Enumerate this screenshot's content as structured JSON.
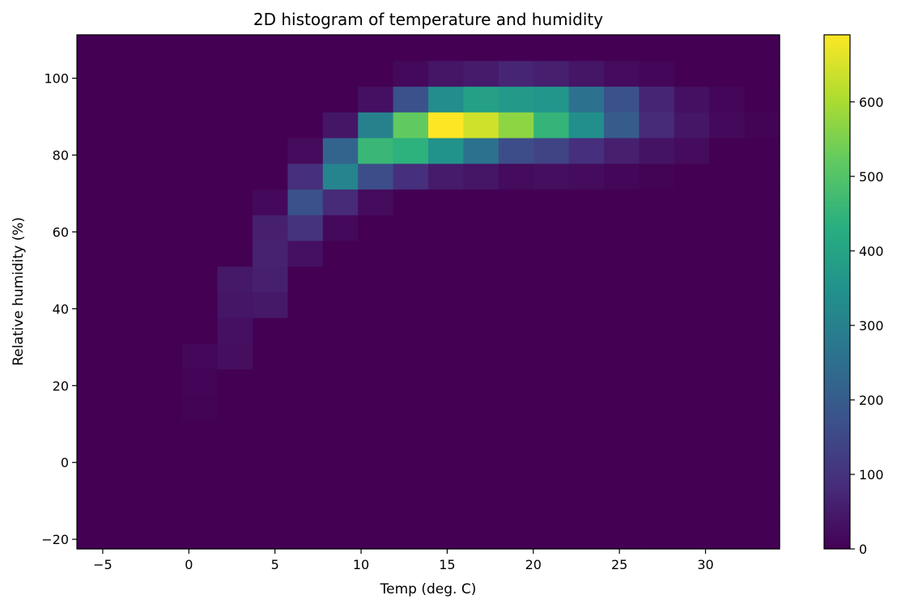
{
  "chart_data": {
    "type": "heatmap",
    "title": "2D histogram of temperature and humidity",
    "xlabel": "Temp (deg. C)",
    "ylabel": "Relative humidity (%)",
    "xlim": [
      -6.5,
      34.3
    ],
    "ylim": [
      -22.5,
      111.3
    ],
    "xticks": [
      -5,
      0,
      5,
      10,
      15,
      20,
      25,
      30
    ],
    "xtick_labels": [
      "−5",
      "0",
      "5",
      "10",
      "15",
      "20",
      "25",
      "30"
    ],
    "yticks": [
      -20,
      0,
      20,
      40,
      60,
      80,
      100
    ],
    "ytick_labels": [
      "−20",
      "0",
      "20",
      "40",
      "60",
      "80",
      "100"
    ],
    "colormap": "viridis",
    "colorbar": {
      "range": [
        0,
        690
      ],
      "ticks": [
        0,
        100,
        200,
        300,
        400,
        500,
        600
      ],
      "tick_labels": [
        "0",
        "100",
        "200",
        "300",
        "400",
        "500",
        "600"
      ]
    },
    "x_edges": [
      -6.5,
      -4.46,
      -2.42,
      -0.38,
      1.66,
      3.7,
      5.74,
      7.78,
      9.82,
      11.86,
      13.9,
      15.94,
      17.98,
      20.02,
      22.06,
      24.1,
      26.14,
      28.18,
      30.22,
      32.26,
      34.3
    ],
    "y_edges": [
      -22.5,
      -15.81,
      -9.12,
      -2.43,
      4.26,
      10.95,
      17.64,
      24.33,
      31.02,
      37.71,
      44.4,
      51.09,
      57.78,
      64.47,
      71.16,
      77.85,
      84.54,
      91.23,
      97.92,
      104.61,
      111.3
    ],
    "counts": [
      [
        0,
        0,
        0,
        0,
        0,
        0,
        0,
        0,
        0,
        0,
        0,
        0,
        0,
        0,
        0,
        0,
        0,
        0,
        0,
        0
      ],
      [
        0,
        0,
        0,
        0,
        0,
        0,
        0,
        0,
        0,
        0,
        0,
        0,
        0,
        0,
        0,
        0,
        0,
        0,
        0,
        0
      ],
      [
        0,
        0,
        0,
        0,
        0,
        0,
        0,
        0,
        0,
        0,
        0,
        0,
        0,
        0,
        0,
        0,
        0,
        0,
        0,
        0
      ],
      [
        0,
        0,
        0,
        0,
        0,
        0,
        0,
        0,
        0,
        0,
        0,
        0,
        0,
        0,
        0,
        0,
        0,
        0,
        0,
        0
      ],
      [
        0,
        0,
        0,
        0,
        0,
        0,
        0,
        0,
        0,
        0,
        0,
        0,
        0,
        0,
        0,
        0,
        0,
        0,
        0,
        0
      ],
      [
        0,
        0,
        0,
        5,
        0,
        0,
        0,
        0,
        0,
        0,
        0,
        0,
        0,
        0,
        0,
        0,
        0,
        0,
        0,
        0
      ],
      [
        0,
        0,
        0,
        8,
        0,
        0,
        0,
        0,
        0,
        0,
        0,
        0,
        0,
        0,
        0,
        0,
        0,
        0,
        0,
        0
      ],
      [
        0,
        0,
        0,
        12,
        25,
        0,
        0,
        0,
        0,
        0,
        0,
        0,
        0,
        0,
        0,
        0,
        0,
        0,
        0,
        0
      ],
      [
        0,
        0,
        0,
        0,
        30,
        0,
        0,
        0,
        0,
        0,
        0,
        0,
        0,
        0,
        0,
        0,
        0,
        0,
        0,
        0
      ],
      [
        0,
        0,
        0,
        0,
        40,
        45,
        0,
        0,
        0,
        0,
        0,
        0,
        0,
        0,
        0,
        0,
        0,
        0,
        0,
        0
      ],
      [
        0,
        0,
        0,
        0,
        45,
        60,
        0,
        0,
        0,
        0,
        0,
        0,
        0,
        0,
        0,
        0,
        0,
        0,
        0,
        0
      ],
      [
        0,
        0,
        0,
        0,
        0,
        65,
        30,
        0,
        0,
        0,
        0,
        0,
        0,
        0,
        0,
        0,
        0,
        0,
        0,
        0
      ],
      [
        0,
        0,
        0,
        0,
        0,
        60,
        100,
        15,
        0,
        0,
        0,
        0,
        0,
        0,
        0,
        0,
        0,
        0,
        0,
        0
      ],
      [
        0,
        0,
        0,
        0,
        0,
        15,
        170,
        80,
        20,
        0,
        0,
        0,
        0,
        0,
        0,
        0,
        0,
        0,
        0,
        0
      ],
      [
        0,
        0,
        0,
        0,
        0,
        0,
        90,
        310,
        160,
        90,
        50,
        40,
        20,
        25,
        20,
        10,
        5,
        0,
        0,
        0
      ],
      [
        0,
        0,
        0,
        0,
        0,
        0,
        20,
        220,
        460,
        440,
        350,
        260,
        160,
        140,
        90,
        60,
        35,
        20,
        0,
        0
      ],
      [
        0,
        0,
        0,
        0,
        0,
        0,
        0,
        40,
        300,
        520,
        690,
        640,
        570,
        450,
        340,
        200,
        80,
        40,
        15,
        5
      ],
      [
        0,
        0,
        0,
        0,
        0,
        0,
        0,
        0,
        30,
        170,
        330,
        390,
        370,
        360,
        260,
        170,
        70,
        30,
        10,
        0
      ],
      [
        0,
        0,
        0,
        0,
        0,
        0,
        0,
        0,
        0,
        15,
        40,
        50,
        70,
        60,
        40,
        20,
        10,
        0,
        0,
        0
      ],
      [
        0,
        0,
        0,
        0,
        0,
        0,
        0,
        0,
        0,
        0,
        0,
        0,
        0,
        0,
        0,
        0,
        0,
        0,
        0,
        0
      ]
    ]
  }
}
